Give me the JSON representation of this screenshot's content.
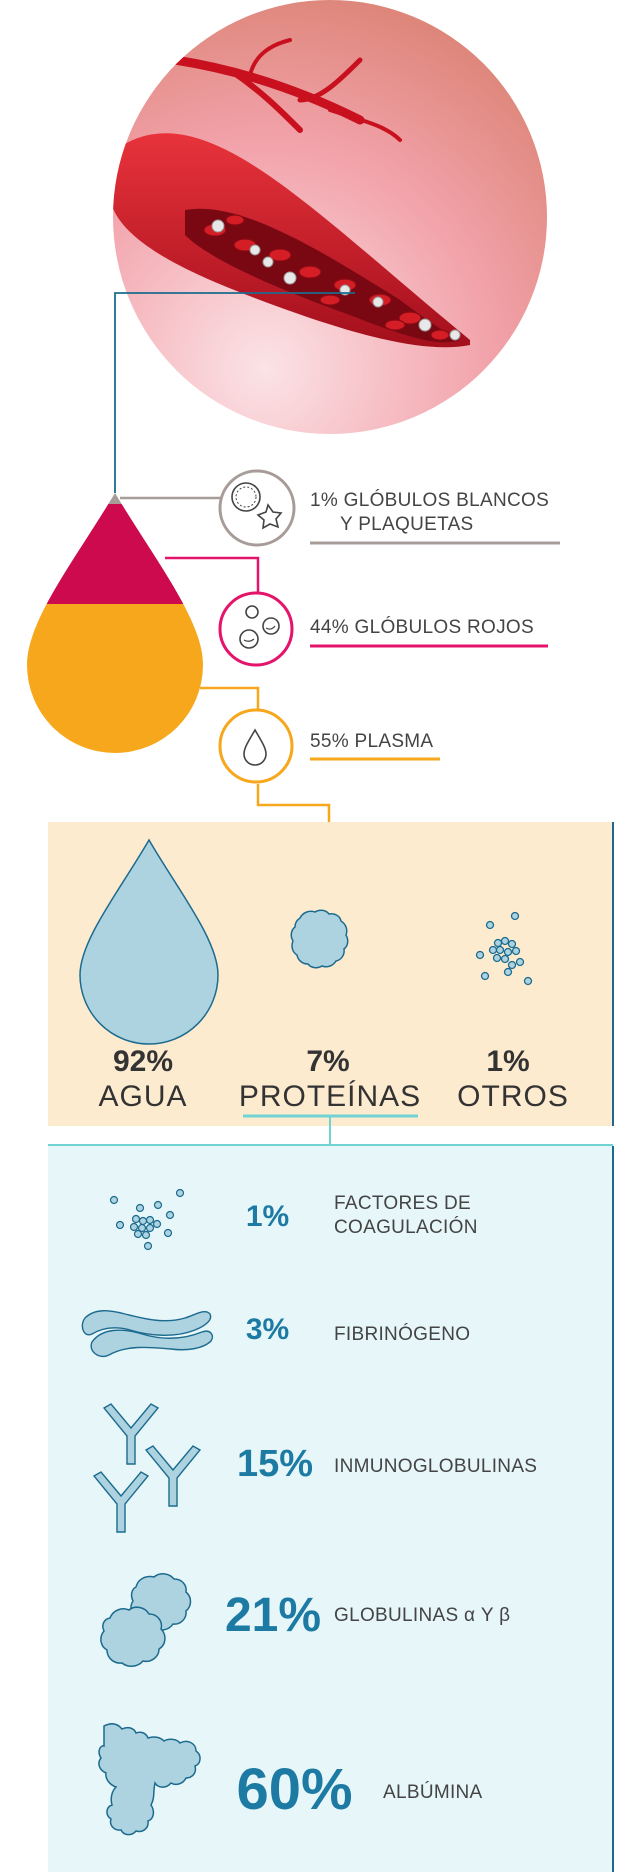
{
  "colors": {
    "white_cells": "#a89c98",
    "red_cells": "#e4146b",
    "plasma": "#f6a71b",
    "drop_top": "#cc0a4d",
    "composition_bg": "#fdebd0",
    "proteins_bg": "#e6f6f9",
    "teal_line": "#6fd3d3",
    "dark_blue": "#1c6b8f",
    "light_blue": "#aed3e0"
  },
  "blood_components": [
    {
      "id": "white",
      "label_line1": "1% GLÓBULOS BLANCOS",
      "label_line2": "Y PLAQUETAS",
      "icon": "white-cells-platelets-icon"
    },
    {
      "id": "red",
      "label_line1": "44% GLÓBULOS ROJOS",
      "icon": "red-cells-icon"
    },
    {
      "id": "plasma",
      "label_line1": "55% PLASMA",
      "icon": "plasma-drop-icon"
    }
  ],
  "plasma_composition": [
    {
      "pct": "92%",
      "name": "AGUA",
      "icon": "water-drop-icon"
    },
    {
      "pct": "7%",
      "name": "PROTEÍNAS",
      "icon": "protein-blob-icon"
    },
    {
      "pct": "1%",
      "name": "OTROS",
      "icon": "particles-icon"
    }
  ],
  "proteins": [
    {
      "pct": "1%",
      "name_line1": "FACTORES DE",
      "name_line2": "COAGULACIÓN",
      "icon": "coagulation-factors-icon"
    },
    {
      "pct": "3%",
      "name_line1": "FIBRINÓGENO",
      "icon": "fibrinogen-icon"
    },
    {
      "pct": "15%",
      "name_line1": "INMUNOGLOBULINAS",
      "icon": "immunoglobulin-icon"
    },
    {
      "pct": "21%",
      "name_line1": "GLOBULINAS α Y β",
      "icon": "globulins-icon"
    },
    {
      "pct": "60%",
      "name_line1": "ALBÚMINA",
      "icon": "albumin-icon"
    }
  ]
}
